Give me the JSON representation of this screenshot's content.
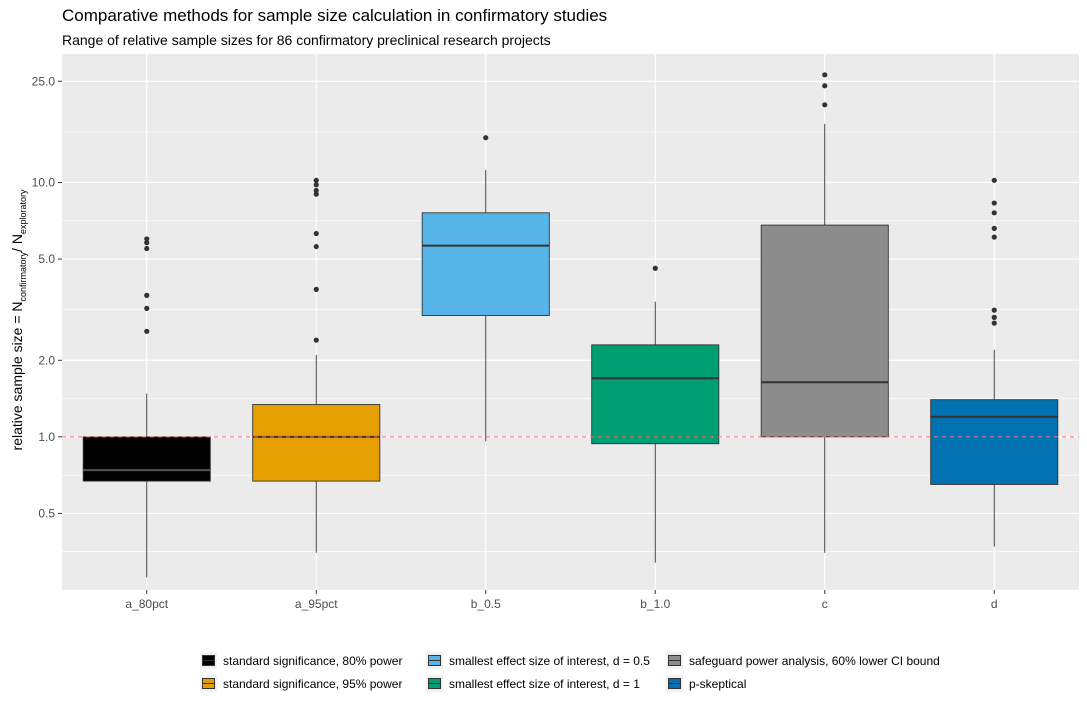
{
  "chart_data": {
    "type": "boxplot",
    "title": "Comparative methods for sample size calculation in confirmatory studies",
    "subtitle": "Range of relative sample sizes for 86 confirmatory preclinical research projects",
    "ylabel": {
      "main": "relative sample size = N",
      "sub1": "confirmatory",
      "mid": "/ N",
      "sub2": "exploratory"
    },
    "y_scale": "log",
    "ylim": [
      0.25,
      32
    ],
    "y_ticks": [
      0.5,
      1.0,
      2.0,
      5.0,
      10.0,
      25.0
    ],
    "y_tick_labels": [
      "0.5",
      "1.0",
      "2.0",
      "5.0",
      "10.0",
      "25.0"
    ],
    "reference_line": 1.0,
    "categories": [
      "a_80pct",
      "a_95pct",
      "b_0.5",
      "b_1.0",
      "c",
      "d"
    ],
    "boxes": [
      {
        "category": "a_80pct",
        "whisker_low": 0.28,
        "q1": 0.67,
        "median": 0.74,
        "q3": 1.0,
        "whisker_high": 1.48,
        "outliers": [
          2.6,
          3.2,
          3.6,
          5.5,
          5.8,
          6.0
        ]
      },
      {
        "category": "a_95pct",
        "whisker_low": 0.35,
        "q1": 0.67,
        "median": 1.0,
        "q3": 1.34,
        "whisker_high": 2.1,
        "outliers": [
          2.4,
          3.8,
          5.6,
          6.3,
          9.0,
          9.3,
          9.8,
          10.2
        ]
      },
      {
        "category": "b_0.5",
        "whisker_low": 0.96,
        "q1": 3.0,
        "median": 5.65,
        "q3": 7.6,
        "whisker_high": 11.2,
        "outliers": [
          15.0
        ]
      },
      {
        "category": "b_1.0",
        "whisker_low": 0.32,
        "q1": 0.94,
        "median": 1.7,
        "q3": 2.3,
        "whisker_high": 3.4,
        "outliers": [
          4.6
        ]
      },
      {
        "category": "c",
        "whisker_low": 0.35,
        "q1": 1.0,
        "median": 1.64,
        "q3": 6.8,
        "whisker_high": 17.0,
        "outliers": [
          20.2,
          24.0,
          26.5
        ]
      },
      {
        "category": "d",
        "whisker_low": 0.37,
        "q1": 0.65,
        "median": 1.2,
        "q3": 1.4,
        "whisker_high": 2.2,
        "outliers": [
          2.8,
          2.95,
          3.15,
          6.1,
          6.6,
          7.6,
          8.3,
          10.2
        ]
      }
    ],
    "grid": true,
    "legend_position": "bottom",
    "legend": [
      {
        "key": "a_80pct",
        "label": "standard significance, 80% power",
        "color": "#000000"
      },
      {
        "key": "a_95pct",
        "label": "standard significance, 95% power",
        "color": "#E69F00"
      },
      {
        "key": "b_0.5",
        "label": "smallest effect size of interest, d = 0.5",
        "color": "#56B4E9"
      },
      {
        "key": "b_1.0",
        "label": "smallest effect size of interest, d = 1",
        "color": "#009E73"
      },
      {
        "key": "c",
        "label": "safeguard power analysis, 60% lower CI bound",
        "color": "#8C8C8C"
      },
      {
        "key": "d",
        "label": "p-skeptical",
        "color": "#0072B2"
      }
    ],
    "colors": {
      "panel_bg": "#EBEBEB",
      "grid": "#FFFFFF",
      "reference_line": "#F8766D",
      "box_border": "#333333"
    }
  }
}
